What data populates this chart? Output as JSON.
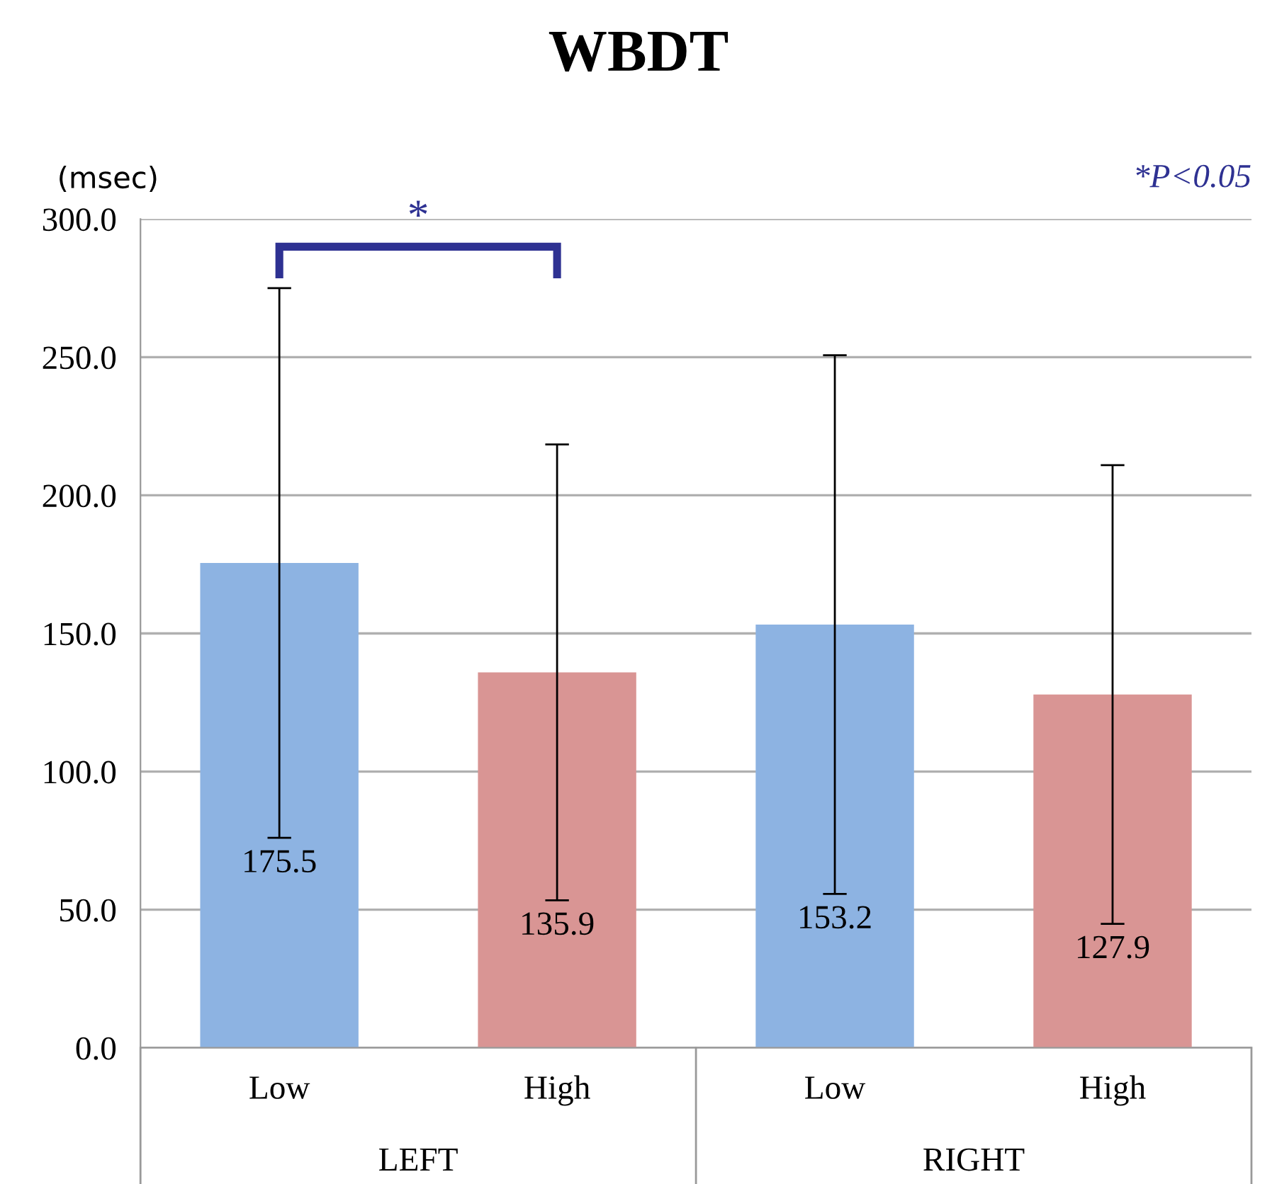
{
  "chart_data": {
    "type": "bar",
    "title": "WBDT",
    "ylabel": "(msec)",
    "categories": [
      "Low",
      "High",
      "Low",
      "High"
    ],
    "values": [
      175.5,
      135.9,
      153.2,
      127.9
    ],
    "errors": [
      99.5,
      82.5,
      97.5,
      83.0
    ],
    "colors": [
      "#8db3e2",
      "#d99594",
      "#8db3e2",
      "#d99594"
    ],
    "ylim": [
      0,
      300
    ],
    "yticks": [
      {
        "value": 0,
        "label": "0.0"
      },
      {
        "value": 50,
        "label": "50.0"
      },
      {
        "value": 100,
        "label": "100.0"
      },
      {
        "value": 150,
        "label": "150.0"
      },
      {
        "value": 200,
        "label": "200.0"
      },
      {
        "value": 250,
        "label": "250.0"
      },
      {
        "value": 300,
        "label": "300.0"
      }
    ],
    "grid": "y",
    "data_labels": true,
    "annotations": [
      "*",
      "*P<0.05",
      "LEFT",
      "RIGHT"
    ]
  }
}
